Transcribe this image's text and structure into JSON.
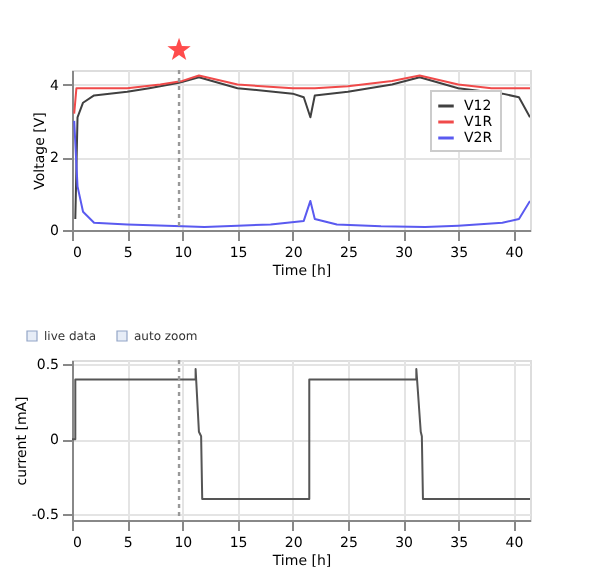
{
  "chart_data": [
    {
      "type": "line",
      "xlabel": "Time [h]",
      "ylabel": "Voltage [V]",
      "xlim": [
        0,
        41.5
      ],
      "ylim": [
        0,
        4.4
      ],
      "xticks": [
        0,
        5,
        10,
        15,
        20,
        25,
        30,
        35,
        40
      ],
      "yticks": [
        0,
        2,
        4
      ],
      "grid": true,
      "legend": "right",
      "series": [
        {
          "name": "V12",
          "color": "#404040",
          "x": [
            0.3,
            0.5,
            1,
            2,
            5,
            7,
            9.7,
            11.5,
            15,
            20,
            21,
            21.6,
            22,
            25,
            29,
            31.5,
            35,
            39,
            40.5,
            41.5
          ],
          "values": [
            0.3,
            3.1,
            3.5,
            3.7,
            3.8,
            3.9,
            4.05,
            4.2,
            3.9,
            3.75,
            3.65,
            3.1,
            3.7,
            3.8,
            4.0,
            4.2,
            3.9,
            3.75,
            3.65,
            3.1
          ]
        },
        {
          "name": "V1R",
          "color": "#f04a4a",
          "x": [
            0.2,
            0.4,
            5,
            8,
            10,
            11.5,
            15,
            20,
            22,
            25,
            29,
            31.5,
            35,
            38,
            41.5
          ],
          "values": [
            3.2,
            3.9,
            3.9,
            4.0,
            4.1,
            4.25,
            4.0,
            3.9,
            3.9,
            3.95,
            4.1,
            4.25,
            4.0,
            3.9,
            3.9
          ]
        },
        {
          "name": "V2R",
          "color": "#5a5af0",
          "x": [
            0.2,
            0.5,
            1,
            2,
            5,
            10,
            12,
            15,
            18,
            21,
            21.6,
            22,
            24,
            28,
            32,
            35,
            39,
            40.5,
            41.5
          ],
          "values": [
            3.0,
            1.2,
            0.5,
            0.2,
            0.15,
            0.1,
            0.08,
            0.12,
            0.15,
            0.25,
            0.8,
            0.3,
            0.15,
            0.1,
            0.08,
            0.12,
            0.2,
            0.3,
            0.8
          ]
        }
      ],
      "ref_lines": [
        {
          "axis": "x",
          "value": 9.7,
          "line_style": "dotted",
          "color": "#999999"
        }
      ]
    },
    {
      "type": "line",
      "xlabel": "Time [h]",
      "ylabel": "current [mA]",
      "xlim": [
        0,
        41.5
      ],
      "ylim": [
        -0.54,
        0.53
      ],
      "xticks": [
        0,
        5,
        10,
        15,
        20,
        25,
        30,
        35,
        40
      ],
      "yticks": [
        -0.5,
        0,
        0.5
      ],
      "grid": true,
      "annotations": [
        "live data",
        "auto zoom"
      ],
      "series": [
        {
          "color": "#555555",
          "x": [
            0,
            0.3,
            0.3,
            11.2,
            11.2,
            11.5,
            11.7,
            11.8,
            21.5,
            21.5,
            31.2,
            31.2,
            31.6,
            31.7,
            31.8,
            41.5
          ],
          "values": [
            0,
            0,
            0.4,
            0.4,
            0.47,
            0.05,
            0.02,
            -0.4,
            -0.4,
            0.4,
            0.4,
            0.47,
            0.05,
            0.02,
            -0.4,
            -0.4
          ]
        }
      ],
      "ref_lines": [
        {
          "axis": "x",
          "value": 9.7,
          "line_style": "dotted",
          "color": "#999999"
        }
      ]
    }
  ]
}
